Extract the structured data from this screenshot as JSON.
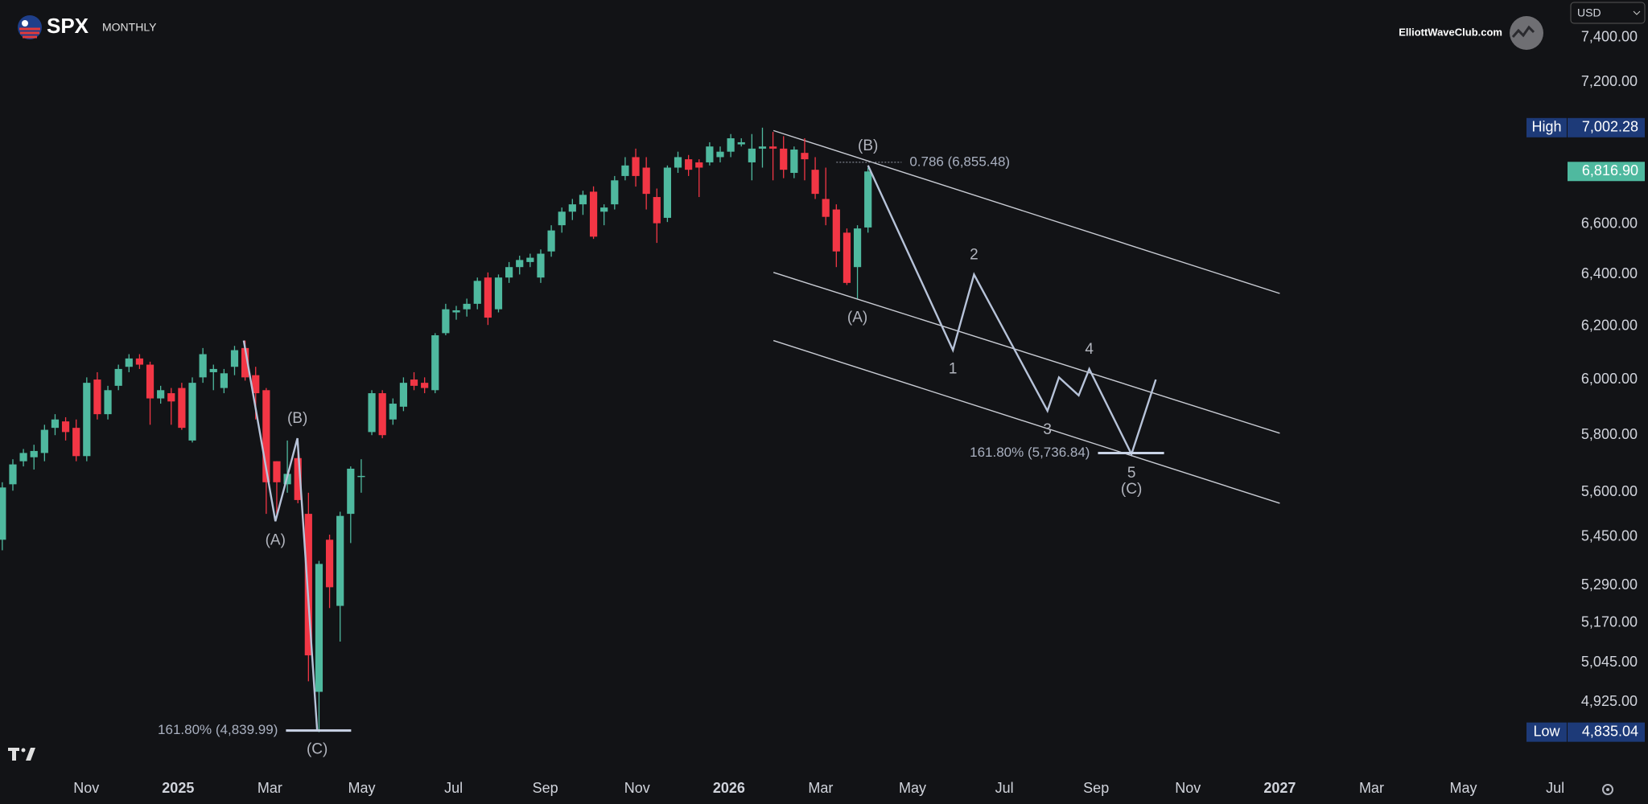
{
  "header": {
    "symbol": "SPX",
    "interval": "MONTHLY",
    "brand": "ElliottWaveClub.com",
    "currency": "USD"
  },
  "chart_data": {
    "type": "candlestick",
    "log_scale": true,
    "up_color": "#4fb99f",
    "down_color": "#f23645",
    "x": [
      -1.83,
      -1.6,
      -1.37,
      -1.14,
      -0.91,
      -0.68,
      -0.45,
      -0.22,
      0.01,
      0.24,
      0.47,
      0.7,
      0.93,
      1.16,
      1.39,
      1.62,
      1.85,
      2.08,
      2.31,
      2.54,
      2.77,
      3.0,
      3.23,
      3.46,
      3.69,
      3.92,
      4.15,
      4.38,
      4.61,
      4.84,
      5.07,
      5.3,
      5.53,
      5.76,
      5.99,
      6.22,
      6.45,
      6.68,
      6.91,
      7.14,
      7.37,
      7.6,
      7.83,
      8.06,
      8.29,
      8.52,
      8.75,
      8.98,
      9.21,
      9.44,
      9.67,
      9.9,
      10.13,
      10.36,
      10.59,
      10.82,
      11.05,
      11.28,
      11.51,
      11.74,
      11.97,
      12.2,
      12.43,
      12.66,
      12.89,
      13.12,
      13.35,
      13.58,
      13.81,
      14.04,
      14.27,
      14.5,
      14.73,
      14.96,
      15.19,
      15.42,
      15.65,
      15.88,
      16.11,
      16.34,
      16.57,
      16.8,
      17.03
    ],
    "open": [
      5440,
      5628,
      5708,
      5722,
      5737,
      5826,
      5849,
      5826,
      5726,
      6001,
      5875,
      5978,
      6048,
      6079,
      6056,
      5932,
      5951,
      5970,
      5781,
      6009,
      6028,
      5970,
      6048,
      6118,
      6017,
      5962,
      5708,
      5628,
      5719,
      5527,
      4956,
      5440,
      5224,
      5527,
      5653,
      5811,
      5951,
      5856,
      5902,
      6001,
      5989,
      5962,
      6174,
      6253,
      6265,
      6286,
      6388,
      6265,
      6388,
      6429,
      6449,
      6388,
      6491,
      6596,
      6651,
      6681,
      6733,
      6651,
      6681,
      6798,
      6877,
      6833,
      6711,
      6626,
      6833,
      6868,
      6855,
      6855,
      6877,
      6900,
      6931,
      6855,
      6913,
      6922,
      6913,
      6811,
      6895,
      6824,
      6703,
      6660,
      6566,
      6429,
      6587
    ],
    "high": [
      5635,
      5715,
      5751,
      5766,
      5837,
      5875,
      5864,
      5856,
      6009,
      6028,
      5978,
      6056,
      6095,
      6095,
      6067,
      5978,
      5970,
      5989,
      6009,
      6118,
      6056,
      6040,
      6126,
      6146,
      6048,
      5970,
      5708,
      5781,
      5744,
      5599,
      5370,
      5457,
      5534,
      5690,
      5715,
      5962,
      5962,
      5932,
      6009,
      6028,
      6009,
      6174,
      6286,
      6278,
      6306,
      6388,
      6408,
      6400,
      6449,
      6474,
      6482,
      6499,
      6596,
      6668,
      6703,
      6737,
      6755,
      6681,
      6798,
      6877,
      6913,
      6877,
      6746,
      6842,
      6900,
      6886,
      6868,
      6940,
      6922,
      6975,
      6957,
      6975,
      7002.28,
      6984,
      6966,
      6922,
      6957,
      6877,
      6833,
      6681,
      6583,
      6596,
      6833
    ],
    "low": [
      5405,
      5606,
      5690,
      5679,
      5708,
      5800,
      5781,
      5708,
      5708,
      5856,
      5856,
      5962,
      6028,
      6040,
      5837,
      5913,
      5837,
      5819,
      5774,
      5989,
      5962,
      5951,
      6017,
      5997,
      5856,
      5527,
      5527,
      5599,
      5563,
      4988,
      4835.04,
      5217,
      5111,
      5429,
      5599,
      5800,
      5789,
      5837,
      5886,
      5962,
      5951,
      5951,
      6166,
      6225,
      6237,
      6265,
      6205,
      6253,
      6367,
      6400,
      6429,
      6367,
      6470,
      6566,
      6617,
      6638,
      6541,
      6596,
      6660,
      6780,
      6754,
      6660,
      6525,
      6609,
      6811,
      6798,
      6711,
      6842,
      6855,
      6877,
      6922,
      6780,
      6833,
      6780,
      6789,
      6789,
      6780,
      6703,
      6596,
      6429,
      6359,
      6306,
      6566
    ],
    "close": [
      5617,
      5697,
      5737,
      5744,
      5819,
      5856,
      5811,
      5726,
      5989,
      5875,
      5962,
      6040,
      6079,
      6056,
      5932,
      5962,
      5921,
      5826,
      5989,
      6095,
      6040,
      6024,
      6110,
      6009,
      5951,
      5635,
      5635,
      5664,
      5574,
      5068,
      5360,
      5284,
      5520,
      5682,
      5657,
      5951,
      5800,
      5913,
      5989,
      5978,
      5970,
      6166,
      6265,
      6261,
      6286,
      6375,
      6233,
      6388,
      6429,
      6457,
      6466,
      6482,
      6575,
      6651,
      6681,
      6720,
      6550,
      6668,
      6780,
      6842,
      6798,
      6724,
      6604,
      6833,
      6877,
      6824,
      6833,
      6922,
      6900,
      6957,
      6940,
      6913,
      6922,
      6913,
      6824,
      6909,
      6868,
      6724,
      6630,
      6491,
      6367,
      6583,
      6816.9
    ],
    "xlim": [
      -1.88,
      32.22
    ],
    "ylim": [
      4720,
      7572
    ],
    "xticks": [
      {
        "value": 0,
        "label": "Nov"
      },
      {
        "value": 2,
        "label": "2025"
      },
      {
        "value": 4,
        "label": "Mar"
      },
      {
        "value": 6,
        "label": "May"
      },
      {
        "value": 8,
        "label": "Jul"
      },
      {
        "value": 10,
        "label": "Sep"
      },
      {
        "value": 12,
        "label": "Nov"
      },
      {
        "value": 14,
        "label": "2026"
      },
      {
        "value": 16,
        "label": "Mar"
      },
      {
        "value": 18,
        "label": "May"
      },
      {
        "value": 20,
        "label": "Jul"
      },
      {
        "value": 22,
        "label": "Sep"
      },
      {
        "value": 24,
        "label": "Nov"
      },
      {
        "value": 26,
        "label": "2027"
      },
      {
        "value": 28,
        "label": "Mar"
      },
      {
        "value": 30,
        "label": "May"
      },
      {
        "value": 32,
        "label": "Jul"
      }
    ],
    "yticks": [
      {
        "value": 7400,
        "label": "7,400.00"
      },
      {
        "value": 7200,
        "label": "7,200.00"
      },
      {
        "value": 6600,
        "label": "6,600.00"
      },
      {
        "value": 6400,
        "label": "6,400.00"
      },
      {
        "value": 6200,
        "label": "6,200.00"
      },
      {
        "value": 6000,
        "label": "6,000.00"
      },
      {
        "value": 5800,
        "label": "5,800.00"
      },
      {
        "value": 5600,
        "label": "5,600.00"
      },
      {
        "value": 5450,
        "label": "5,450.00"
      },
      {
        "value": 5290,
        "label": "5,290.00"
      },
      {
        "value": 5170,
        "label": "5,170.00"
      },
      {
        "value": 5045,
        "label": "5,045.00"
      },
      {
        "value": 4925,
        "label": "4,925.00"
      }
    ],
    "price_tags": [
      {
        "label": "High",
        "value": 7002.28,
        "value_label": "7,002.28",
        "color": "#1d3a78"
      },
      {
        "value": 6816.9,
        "value_label": "6,816.90",
        "color": "#4fb99f"
      },
      {
        "label": "Low",
        "value": 4835.04,
        "value_label": "4,835.04",
        "color": "#1d3a78"
      }
    ],
    "channels": [
      {
        "x": [
          14.97,
          26.0
        ],
        "y": [
          6990,
          6326
        ]
      },
      {
        "x": [
          14.97,
          26.0
        ],
        "y": [
          6408,
          5807
        ]
      },
      {
        "x": [
          14.97,
          26.0
        ],
        "y": [
          6146,
          5563
        ]
      }
    ],
    "waves": [
      {
        "x": [
          3.43,
          4.12,
          4.6,
          5.03
        ],
        "y": [
          6146,
          5502,
          5789,
          4840
        ]
      },
      {
        "x": [
          17.03,
          18.88,
          19.34,
          20.94,
          21.19,
          21.62,
          21.85,
          22.77,
          23.3
        ],
        "y": [
          6842,
          6110,
          6400,
          5887,
          6009,
          5943,
          6040,
          5733,
          6001
        ]
      }
    ],
    "fib_levels": [
      {
        "label": "161.80% (4,839.99)",
        "value": 4839.99,
        "x": [
          4.35,
          5.77
        ],
        "label_side": "left",
        "style": "solid"
      },
      {
        "label": "161.80% (5,736.84)",
        "value": 5736.84,
        "x": [
          22.04,
          23.48
        ],
        "label_side": "left",
        "style": "solid"
      },
      {
        "label": "0.786 (6,855.48)",
        "value": 6855.48,
        "x": [
          16.34,
          17.76
        ],
        "label_side": "right",
        "style": "dotted"
      }
    ],
    "annotations": [
      {
        "text": "(A)",
        "x": 4.12,
        "y": 5502,
        "position": "below"
      },
      {
        "text": "(B)",
        "x": 4.6,
        "y": 5789,
        "position": "above"
      },
      {
        "text": "(C)",
        "x": 5.03,
        "y": 4840,
        "position": "below"
      },
      {
        "text": "(A)",
        "x": 16.8,
        "y": 6306,
        "position": "below"
      },
      {
        "text": "(B)",
        "x": 17.03,
        "y": 6842,
        "position": "above"
      },
      {
        "text": "1",
        "x": 18.88,
        "y": 6110,
        "position": "below"
      },
      {
        "text": "2",
        "x": 19.34,
        "y": 6400,
        "position": "above"
      },
      {
        "text": "3",
        "x": 20.94,
        "y": 5887,
        "position": "below"
      },
      {
        "text": "4",
        "x": 21.85,
        "y": 6040,
        "position": "above"
      },
      {
        "text": "5",
        "x": 22.77,
        "y": 5733,
        "position": "below"
      },
      {
        "text": "(C)",
        "x": 22.77,
        "y": 5733,
        "position": "below2"
      }
    ]
  }
}
